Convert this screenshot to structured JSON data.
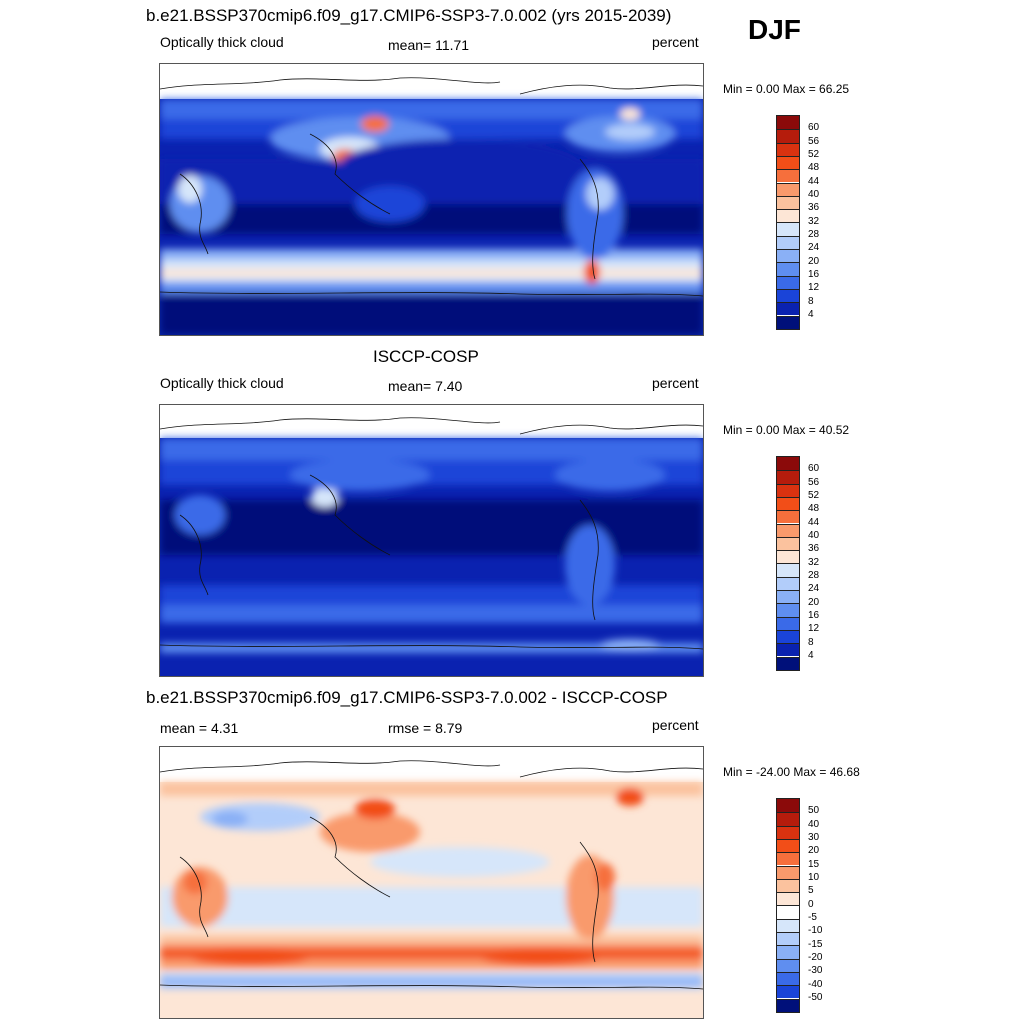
{
  "season": "DJF",
  "panels": [
    {
      "title": "b.e21.BSSP370cmip6.f09_g17.CMIP6-SSP3-7.0.002 (yrs 2015-2039)",
      "left_label": "Optically thick cloud",
      "center_label": "mean=  11.71",
      "right_label": "percent",
      "minmax": "Min =    0.00 Max =  66.25",
      "levels": [
        "60",
        "56",
        "52",
        "48",
        "44",
        "40",
        "36",
        "32",
        "28",
        "24",
        "20",
        "16",
        "12",
        "8",
        "4"
      ],
      "colors": [
        "#8b0a0a",
        "#b51c0c",
        "#d93210",
        "#f24e18",
        "#f66f3c",
        "#f99a6c",
        "#fbc29e",
        "#fde6d6",
        "#d6e6fa",
        "#b2cdfa",
        "#8ab0f6",
        "#5f8ef0",
        "#3a6ae8",
        "#1a44d8",
        "#0a22b0",
        "#00107a"
      ]
    },
    {
      "title": "ISCCP-COSP",
      "left_label": "Optically thick cloud",
      "center_label": "mean=   7.40",
      "right_label": "percent",
      "minmax": "Min =    0.00 Max =  40.52",
      "levels": [
        "60",
        "56",
        "52",
        "48",
        "44",
        "40",
        "36",
        "32",
        "28",
        "24",
        "20",
        "16",
        "12",
        "8",
        "4"
      ],
      "colors": [
        "#8b0a0a",
        "#b51c0c",
        "#d93210",
        "#f24e18",
        "#f66f3c",
        "#f99a6c",
        "#fbc29e",
        "#fde6d6",
        "#d6e6fa",
        "#b2cdfa",
        "#8ab0f6",
        "#5f8ef0",
        "#3a6ae8",
        "#1a44d8",
        "#0a22b0",
        "#00107a"
      ]
    },
    {
      "title": "b.e21.BSSP370cmip6.f09_g17.CMIP6-SSP3-7.0.002 - ISCCP-COSP",
      "left_label": "mean =   4.31",
      "center_label": "rmse =   8.79",
      "right_label": "percent",
      "minmax": "Min = -24.00 Max =  46.68",
      "levels": [
        "50",
        "40",
        "30",
        "20",
        "15",
        "10",
        "5",
        "0",
        "-5",
        "-10",
        "-15",
        "-20",
        "-30",
        "-40",
        "-50"
      ],
      "colors": [
        "#8b0a0a",
        "#b51c0c",
        "#d93210",
        "#f24e18",
        "#f66f3c",
        "#f99a6c",
        "#fbc29e",
        "#fde6d6",
        "#ffffff",
        "#d6e6fa",
        "#b2cdfa",
        "#8ab0f6",
        "#5f8ef0",
        "#3a6ae8",
        "#1a44d8",
        "#00107a"
      ]
    }
  ]
}
